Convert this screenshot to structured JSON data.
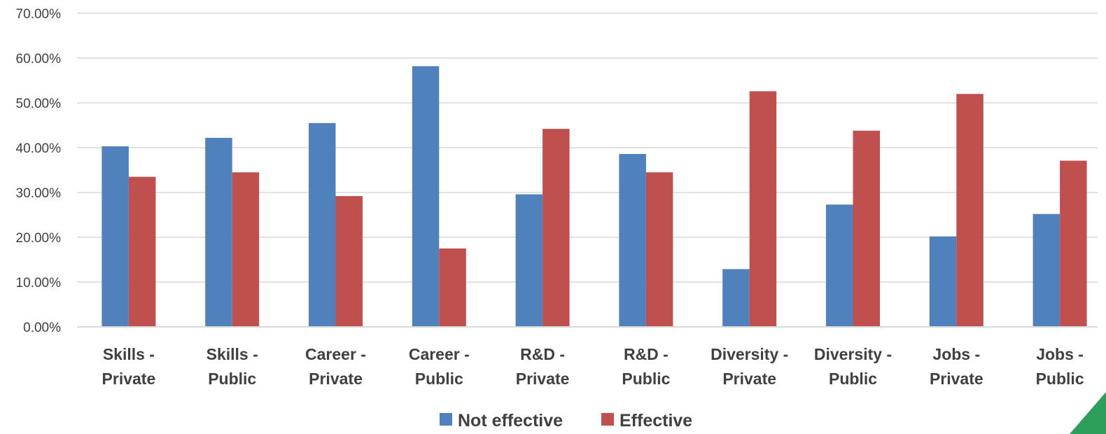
{
  "chart_data": {
    "type": "bar",
    "title": "",
    "xlabel": "",
    "ylabel": "",
    "ylim": [
      0,
      0.7
    ],
    "yticks": [
      "0.00%",
      "10.00%",
      "20.00%",
      "30.00%",
      "40.00%",
      "50.00%",
      "60.00%",
      "70.00%"
    ],
    "grid": true,
    "legend_position": "bottom",
    "categories": [
      [
        "Skills -",
        "Private"
      ],
      [
        "Skills -",
        "Public"
      ],
      [
        "Career -",
        "Private"
      ],
      [
        "Career -",
        "Public"
      ],
      [
        "R&D -",
        "Private"
      ],
      [
        "R&D -",
        "Public"
      ],
      [
        "Diversity -",
        "Private"
      ],
      [
        "Diversity -",
        "Public"
      ],
      [
        "Jobs -",
        "Private"
      ],
      [
        "Jobs -",
        "Public"
      ]
    ],
    "series": [
      {
        "name": "Not effective",
        "color": "#4f81bd",
        "values": [
          0.403,
          0.422,
          0.455,
          0.582,
          0.296,
          0.386,
          0.129,
          0.273,
          0.202,
          0.252
        ]
      },
      {
        "name": "Effective",
        "color": "#c0504d",
        "values": [
          0.335,
          0.345,
          0.292,
          0.175,
          0.442,
          0.345,
          0.526,
          0.438,
          0.52,
          0.371
        ]
      }
    ]
  },
  "decoration": {
    "corner_color": "#2e9e5b"
  }
}
